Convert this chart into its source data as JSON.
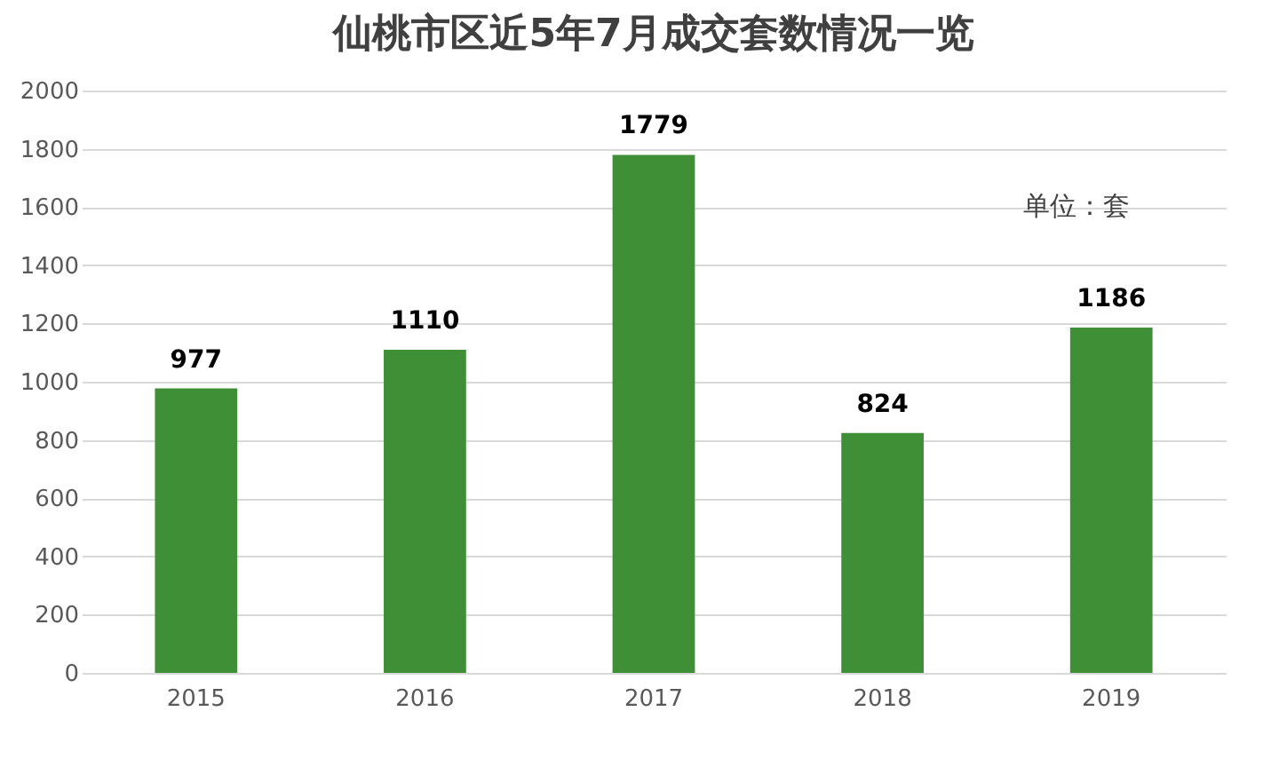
{
  "chart_data": {
    "type": "bar",
    "title": "仙桃市区近5年7月成交套数情况一览",
    "categories": [
      "2015",
      "2016",
      "2017",
      "2018",
      "2019"
    ],
    "values": [
      977,
      1110,
      1779,
      824,
      1186
    ],
    "color": "#3f8f37",
    "ylim": [
      0,
      2000
    ],
    "yticks": [
      0,
      200,
      400,
      600,
      800,
      1000,
      1200,
      1400,
      1600,
      1800,
      2000
    ],
    "grid": "y",
    "data_labels": true,
    "annotations": [
      "单位：套"
    ]
  }
}
